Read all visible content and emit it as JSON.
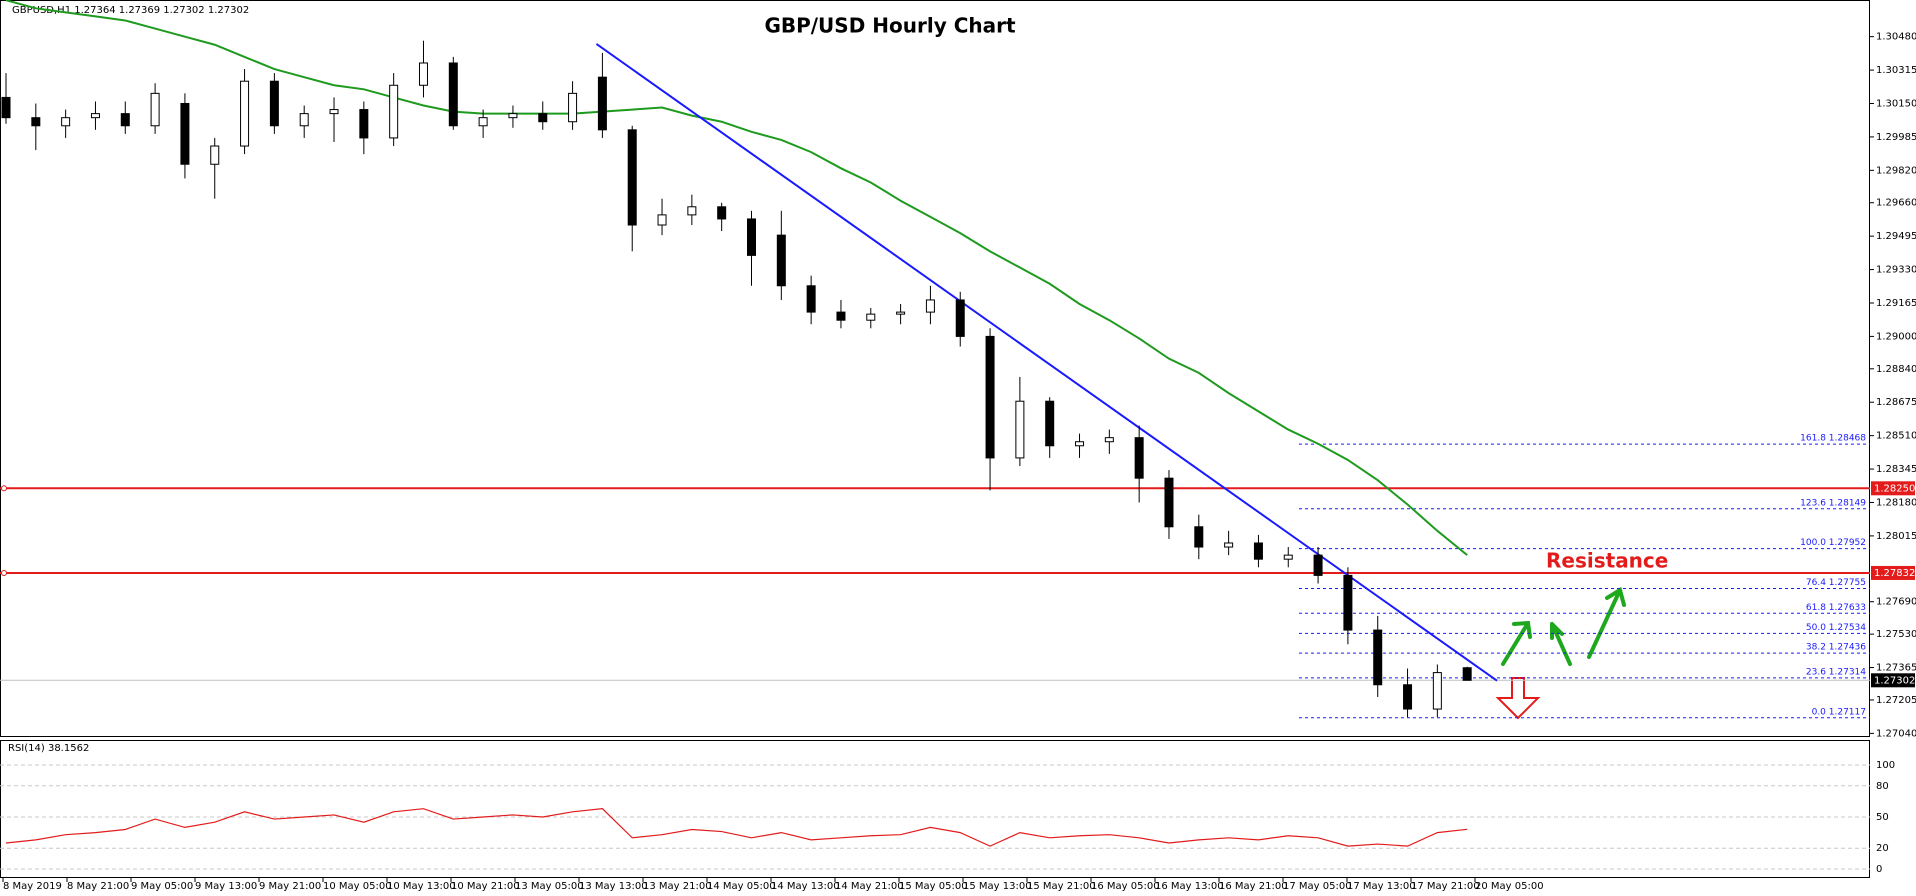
{
  "chart_data": {
    "type": "candlestick",
    "title": "GBP/USD Hourly Chart",
    "header": "GBPUSD,H1  1.27364 1.27369 1.27302 1.27302",
    "annotation": "Resistance",
    "ylim": [
      1.27027,
      1.30661
    ],
    "yticks": [
      {
        "value": 1.3048,
        "label": "1.30480"
      },
      1.30315,
      {
        "value": 1.3015,
        "label": "1.30150"
      },
      1.29985,
      {
        "value": 1.2982,
        "label": "1.29820"
      },
      {
        "value": 1.2966,
        "label": "1.29660"
      },
      1.29495,
      {
        "value": 1.2933,
        "label": "1.29330"
      },
      1.29165,
      {
        "value": 1.29,
        "label": "1.29000"
      },
      {
        "value": 1.2884,
        "label": "1.28840"
      },
      1.28675,
      {
        "value": 1.2851,
        "label": "1.28510"
      },
      1.28345,
      {
        "value": 1.2818,
        "label": "1.28180"
      },
      1.28015,
      {
        "value": 1.2769,
        "label": "1.27690"
      },
      {
        "value": 1.2753,
        "label": "1.27530"
      },
      1.27365,
      1.27205,
      {
        "value": 1.2704,
        "label": "1.27040"
      }
    ],
    "time_labels": [
      "8 May 2019",
      "8 May 21:00",
      "9 May 05:00",
      "9 May 13:00",
      "9 May 21:00",
      "10 May 05:00",
      "10 May 13:00",
      "10 May 21:00",
      "13 May 05:00",
      "13 May 13:00",
      "13 May 21:00",
      "14 May 05:00",
      "14 May 13:00",
      "14 May 21:00",
      "15 May 05:00",
      "15 May 13:00",
      "15 May 21:00",
      "16 May 05:00",
      "16 May 13:00",
      "16 May 21:00",
      "17 May 05:00",
      "17 May 13:00",
      "17 May 21:00",
      "20 May 05:00"
    ],
    "open": [
      1.3018,
      1.3008,
      1.3004,
      1.3008,
      1.301,
      1.3004,
      1.3015,
      1.2985,
      1.2994,
      1.3026,
      1.3004,
      1.301,
      1.3012,
      1.2998,
      1.3024,
      1.3035,
      1.3004,
      1.3008,
      1.301,
      1.3006,
      1.3028,
      1.3002,
      1.2955,
      1.296,
      1.2964,
      1.2958,
      1.295,
      1.2925,
      1.2912,
      1.2908,
      1.2911,
      1.2912,
      1.2918,
      1.29,
      1.284,
      1.2868,
      1.2846,
      1.2848,
      1.285,
      1.283,
      1.2806,
      1.2796,
      1.2798,
      1.279,
      1.2792,
      1.2782,
      1.2755,
      1.2728,
      1.2716,
      1.27364
    ],
    "high": [
      1.303,
      1.3015,
      1.3012,
      1.3016,
      1.3016,
      1.3025,
      1.302,
      1.2998,
      1.3032,
      1.303,
      1.3014,
      1.3018,
      1.3016,
      1.303,
      1.3046,
      1.3038,
      1.3012,
      1.3014,
      1.3016,
      1.3026,
      1.304,
      1.3004,
      1.2968,
      1.297,
      1.2966,
      1.2962,
      1.2962,
      1.293,
      1.2918,
      1.2914,
      1.2916,
      1.2925,
      1.2922,
      1.2904,
      1.288,
      1.287,
      1.2852,
      1.2854,
      1.2856,
      1.2834,
      1.2812,
      1.2804,
      1.2802,
      1.2796,
      1.2796,
      1.2786,
      1.2762,
      1.2736,
      1.2738,
      1.27369
    ],
    "low": [
      1.3005,
      1.2992,
      1.2998,
      1.3002,
      1.3,
      1.3,
      1.2978,
      1.2968,
      1.299,
      1.3,
      1.2998,
      1.2996,
      1.299,
      1.2994,
      1.3018,
      1.3002,
      1.2998,
      1.3003,
      1.3002,
      1.3002,
      1.2998,
      1.2942,
      1.295,
      1.2955,
      1.2952,
      1.2925,
      1.2918,
      1.2906,
      1.2904,
      1.2904,
      1.2906,
      1.2906,
      1.2895,
      1.2824,
      1.2836,
      1.284,
      1.284,
      1.2842,
      1.2818,
      1.28,
      1.279,
      1.2792,
      1.2786,
      1.2786,
      1.2778,
      1.2748,
      1.2722,
      1.2712,
      1.2712,
      1.27302
    ],
    "close": [
      1.3008,
      1.3004,
      1.3008,
      1.301,
      1.3004,
      1.302,
      1.2985,
      1.2994,
      1.3026,
      1.3004,
      1.301,
      1.3012,
      1.2998,
      1.3024,
      1.3035,
      1.3004,
      1.3008,
      1.301,
      1.3006,
      1.302,
      1.3002,
      1.2955,
      1.296,
      1.2964,
      1.2958,
      1.294,
      1.2925,
      1.2912,
      1.2908,
      1.2911,
      1.2912,
      1.2918,
      1.29,
      1.284,
      1.2868,
      1.2846,
      1.2848,
      1.285,
      1.283,
      1.2806,
      1.2796,
      1.2798,
      1.279,
      1.2792,
      1.2782,
      1.2755,
      1.2728,
      1.2716,
      1.2734,
      1.27302
    ],
    "moving_average": {
      "color": "#1e9a1e",
      "values": [
        1.3066,
        1.3062,
        1.306,
        1.3058,
        1.3056,
        1.3052,
        1.3048,
        1.3044,
        1.3038,
        1.3032,
        1.3028,
        1.3024,
        1.3022,
        1.3018,
        1.3014,
        1.3011,
        1.301,
        1.301,
        1.301,
        1.301,
        1.3011,
        1.3012,
        1.3013,
        1.3009,
        1.3006,
        1.3001,
        1.2997,
        1.2991,
        1.2983,
        1.2976,
        1.2967,
        1.2959,
        1.2951,
        1.2942,
        1.2934,
        1.2926,
        1.2916,
        1.2908,
        1.2899,
        1.2889,
        1.2882,
        1.2872,
        1.2863,
        1.2854,
        1.2847,
        1.2839,
        1.2829,
        1.2817,
        1.2804,
        1.2792
      ]
    },
    "trendline": {
      "color": "#1a1aff",
      "x": [
        19.8,
        50
      ],
      "values": [
        1.30444,
        1.273
      ]
    },
    "levels": [
      {
        "value": 1.2825,
        "label": "1.28250"
      },
      {
        "value": 1.27832,
        "label": "1.27832"
      }
    ],
    "current_price": {
      "value": 1.27302,
      "label": "1.27302"
    },
    "fib_levels": [
      {
        "value": 1.28468,
        "label": "161.8 1.28468"
      },
      {
        "value": 1.28149,
        "label": "123.6 1.28149"
      },
      {
        "value": 1.27952,
        "label": "100.0 1.27952"
      },
      {
        "value": 1.27755,
        "label": "76.4 1.27755"
      },
      {
        "value": 1.27633,
        "label": "61.8 1.27633"
      },
      {
        "value": 1.27534,
        "label": "50.0 1.27534"
      },
      {
        "value": 1.27436,
        "label": "38.2 1.27436"
      },
      {
        "value": 1.27314,
        "label": "23.6 1.27314"
      },
      {
        "value": 1.27117,
        "label": "0.0 1.27117"
      }
    ],
    "rsi": {
      "label": "RSI(14) 38.1562",
      "color": "#e31b1b",
      "ylim": [
        0,
        100
      ],
      "yticks": [
        100,
        80,
        50,
        20,
        0
      ],
      "values": [
        25,
        28,
        33,
        35,
        38,
        48,
        40,
        45,
        55,
        48,
        50,
        52,
        45,
        55,
        58,
        48,
        50,
        52,
        50,
        55,
        58,
        30,
        33,
        38,
        36,
        30,
        35,
        28,
        30,
        32,
        33,
        40,
        35,
        22,
        35,
        30,
        32,
        33,
        30,
        25,
        28,
        30,
        28,
        32,
        30,
        22,
        24,
        22,
        35,
        38.1562
      ]
    }
  }
}
